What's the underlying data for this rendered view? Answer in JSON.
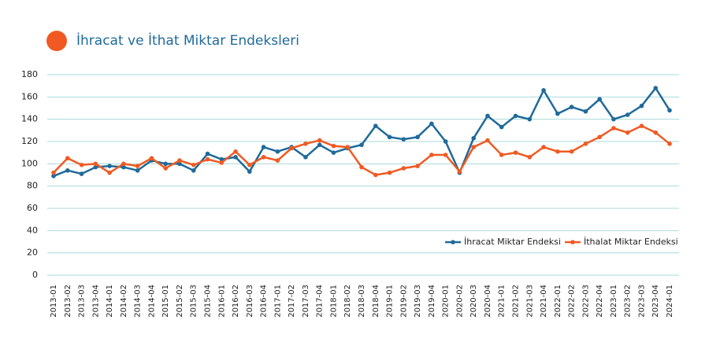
{
  "chart_data": {
    "type": "line",
    "title": "İhracat ve İthat Miktar Endeksleri",
    "categories": [
      "2013-01",
      "2013-02",
      "2013-03",
      "2013-04",
      "2014-01",
      "2014-02",
      "2014-03",
      "2014-04",
      "2015-01",
      "2015-02",
      "2015-03",
      "2015-04",
      "2016-01",
      "2016-02",
      "2016-03",
      "2016-04",
      "2017-01",
      "2017-02",
      "2017-03",
      "2017-04",
      "2018-01",
      "2018-02",
      "2018-03",
      "2018-04",
      "2019-01",
      "2019-02",
      "2019-03",
      "2019-04",
      "2020-01",
      "2020-02",
      "2020-03",
      "2020-04",
      "2021-01",
      "2021-02",
      "2021-03",
      "2021-04",
      "2022-01",
      "2022-02",
      "2022-03",
      "2022-04",
      "2023-01",
      "2023-02",
      "2023-03",
      "2023-04",
      "2024-01"
    ],
    "series": [
      {
        "name": "İhracat Miktar Endeksi",
        "color": "#1f6a9a",
        "values": [
          89,
          94,
          91,
          97,
          98,
          97,
          94,
          103,
          100,
          100,
          94,
          109,
          104,
          106,
          93,
          115,
          111,
          115,
          106,
          117,
          110,
          114,
          117,
          134,
          124,
          122,
          124,
          136,
          120,
          92,
          123,
          143,
          133,
          143,
          140,
          166,
          145,
          151,
          147,
          158,
          140,
          144,
          152,
          168,
          148
        ]
      },
      {
        "name": "İthalat Miktar Endeksi",
        "color": "#f05a22",
        "values": [
          92,
          105,
          99,
          100,
          92,
          100,
          98,
          105,
          96,
          103,
          99,
          104,
          101,
          111,
          99,
          106,
          103,
          114,
          118,
          121,
          116,
          115,
          97,
          90,
          92,
          96,
          98,
          108,
          108,
          93,
          115,
          121,
          108,
          110,
          106,
          115,
          111,
          111,
          118,
          124,
          132,
          128,
          134,
          128,
          118
        ]
      }
    ],
    "ylim": [
      0,
      180
    ],
    "yticks": [
      0,
      20,
      40,
      60,
      80,
      100,
      120,
      140,
      160,
      180
    ],
    "grid": true,
    "legend": "lower-right"
  }
}
